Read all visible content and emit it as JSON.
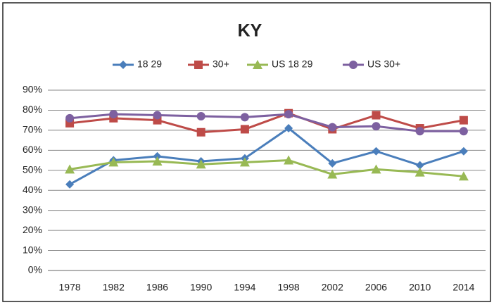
{
  "chart_data": {
    "type": "line",
    "title": "KY",
    "categories": [
      "1978",
      "1982",
      "1986",
      "1990",
      "1994",
      "1998",
      "2002",
      "2006",
      "2010",
      "2014"
    ],
    "series": [
      {
        "name": "18 29",
        "color": "#4a7ebb",
        "marker": "diamond",
        "values": [
          43,
          55,
          57,
          54.5,
          56,
          71,
          53.5,
          59.5,
          52.5,
          59.5
        ]
      },
      {
        "name": "30+",
        "color": "#be4b48",
        "marker": "square",
        "values": [
          73.5,
          76,
          75,
          69,
          70.5,
          78.5,
          70.5,
          77.5,
          71,
          75
        ]
      },
      {
        "name": "US 18 29",
        "color": "#98b954",
        "marker": "triangle",
        "values": [
          50.5,
          54,
          54.5,
          53,
          54,
          55,
          48,
          50.5,
          49,
          47
        ]
      },
      {
        "name": "US 30+",
        "color": "#7d60a0",
        "marker": "circle",
        "values": [
          76,
          78,
          77.5,
          77,
          76.5,
          78,
          71.5,
          72,
          69.5,
          69.5
        ]
      }
    ],
    "ylim": [
      0,
      90
    ],
    "yticks": [
      {
        "value": 0,
        "label": "0%"
      },
      {
        "value": 10,
        "label": "10%"
      },
      {
        "value": 20,
        "label": "20%"
      },
      {
        "value": 30,
        "label": "30%"
      },
      {
        "value": 40,
        "label": "40%"
      },
      {
        "value": 50,
        "label": "50%"
      },
      {
        "value": 60,
        "label": "60%"
      },
      {
        "value": 70,
        "label": "70%"
      },
      {
        "value": 80,
        "label": "80%"
      },
      {
        "value": 90,
        "label": "90%"
      }
    ],
    "grid": true,
    "legend": "top"
  }
}
